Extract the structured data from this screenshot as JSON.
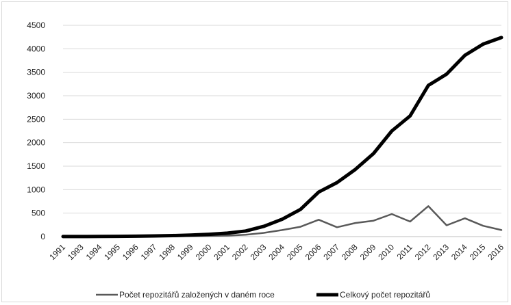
{
  "chart_data": {
    "type": "line",
    "title": "",
    "xlabel": "",
    "ylabel": "",
    "categories": [
      "1991",
      "1993",
      "1994",
      "1995",
      "1996",
      "1997",
      "1998",
      "1999",
      "2000",
      "2001",
      "2002",
      "2003",
      "2004",
      "2005",
      "2006",
      "2007",
      "2008",
      "2009",
      "2010",
      "2011",
      "2012",
      "2013",
      "2014",
      "2015",
      "2016"
    ],
    "ylim": [
      0,
      4500
    ],
    "yticks": [
      0,
      500,
      1000,
      1500,
      2000,
      2500,
      3000,
      3500,
      4000,
      4500
    ],
    "grid": true,
    "legend_position": "bottom",
    "series": [
      {
        "name": "Počet repozitářů založených v daném roce",
        "color": "#595959",
        "values": [
          1,
          1,
          2,
          2,
          3,
          5,
          8,
          10,
          15,
          22,
          40,
          80,
          140,
          210,
          360,
          200,
          290,
          340,
          480,
          320,
          650,
          240,
          390,
          230,
          140
        ]
      },
      {
        "name": "Celkový počet repozitářů",
        "color": "#000000",
        "values": [
          1,
          2,
          4,
          6,
          9,
          14,
          22,
          32,
          50,
          75,
          120,
          220,
          370,
          580,
          950,
          1150,
          1430,
          1770,
          2250,
          2570,
          3220,
          3460,
          3860,
          4100,
          4240
        ]
      }
    ]
  }
}
